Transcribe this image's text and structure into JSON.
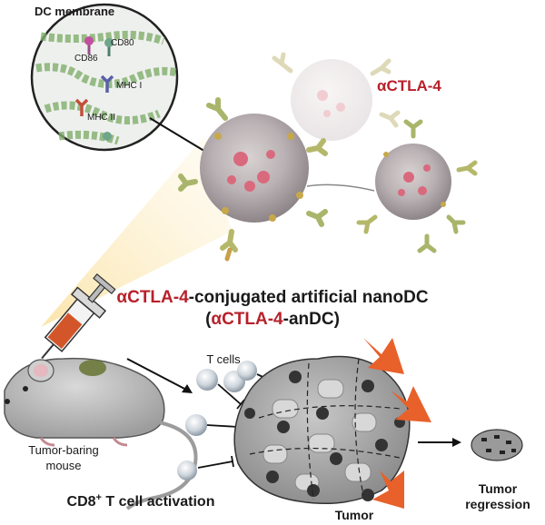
{
  "membrane": {
    "title": "DC membrane",
    "labels": [
      "CD80",
      "CD86",
      "MHC I",
      "MHC II"
    ]
  },
  "antibody": {
    "alpha": "α",
    "name": "CTLA-4"
  },
  "construct": {
    "line1_alpha": "α",
    "line1_name": "CTLA-4",
    "line1_rest": "-conjugated artificial nanoDC",
    "line2_open": "(",
    "line2_alpha": "α",
    "line2_name": "CTLA-4",
    "line2_rest": "-anDC)"
  },
  "labels": {
    "t_cells": "T cells",
    "mouse_line1": "Tumor-baring",
    "mouse_line2": "mouse",
    "cd8_prefix": "CD8",
    "cd8_sup": "+",
    "cd8_suffix": " T cell activation",
    "tumor": "Tumor",
    "regression_line1": "Tumor",
    "regression_line2": "regression"
  },
  "colors": {
    "accent_red": "#b8202a",
    "arrow_orange": "#e8602a",
    "glow_yellow": "#f7d27a",
    "membrane_green": "#7fae6a"
  }
}
